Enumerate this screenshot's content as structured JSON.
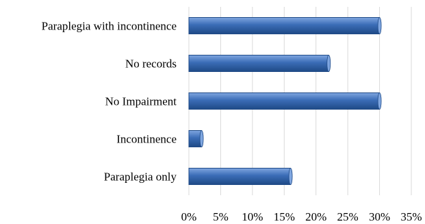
{
  "chart_data": {
    "type": "bar",
    "orientation": "horizontal",
    "categories": [
      "Paraplegia with incontinence",
      "No records",
      "No Impairment",
      "Incontinence",
      "Paraplegia only"
    ],
    "values": [
      30,
      22,
      30,
      2,
      16
    ],
    "value_unit": "%",
    "xlim": [
      0,
      35
    ],
    "x_ticks": [
      "0%",
      "5%",
      "10%",
      "15%",
      "20%",
      "25%",
      "30%",
      "35%"
    ],
    "grid": "vertical",
    "legend": "none",
    "title": "",
    "xlabel": "",
    "ylabel": "",
    "bar_color": "#3a6cb6",
    "bar_color_light": "#7fa6e0",
    "bar_color_dark": "#1f4a86",
    "grid_color": "#d9d9d9"
  }
}
